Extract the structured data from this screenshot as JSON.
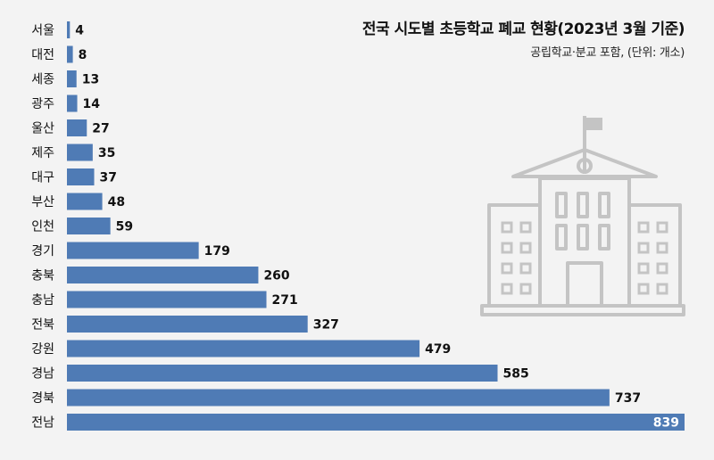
{
  "chart_data": {
    "type": "bar",
    "orientation": "horizontal",
    "title": "전국 시도별 초등학교 폐교 현황(2023년 3월 기준)",
    "subtitle": "공립학교·분교 포함, (단위: 개소)",
    "categories": [
      "서울",
      "대전",
      "세종",
      "광주",
      "울산",
      "제주",
      "대구",
      "부산",
      "인천",
      "경기",
      "충북",
      "충남",
      "전북",
      "강원",
      "경남",
      "경북",
      "전남"
    ],
    "values": [
      4,
      8,
      13,
      14,
      27,
      35,
      37,
      48,
      59,
      179,
      260,
      271,
      327,
      479,
      585,
      737,
      839
    ],
    "xlim": [
      0,
      839
    ],
    "bar_color": "#4f7bb5",
    "grid": false,
    "icon": "school-building-icon"
  }
}
